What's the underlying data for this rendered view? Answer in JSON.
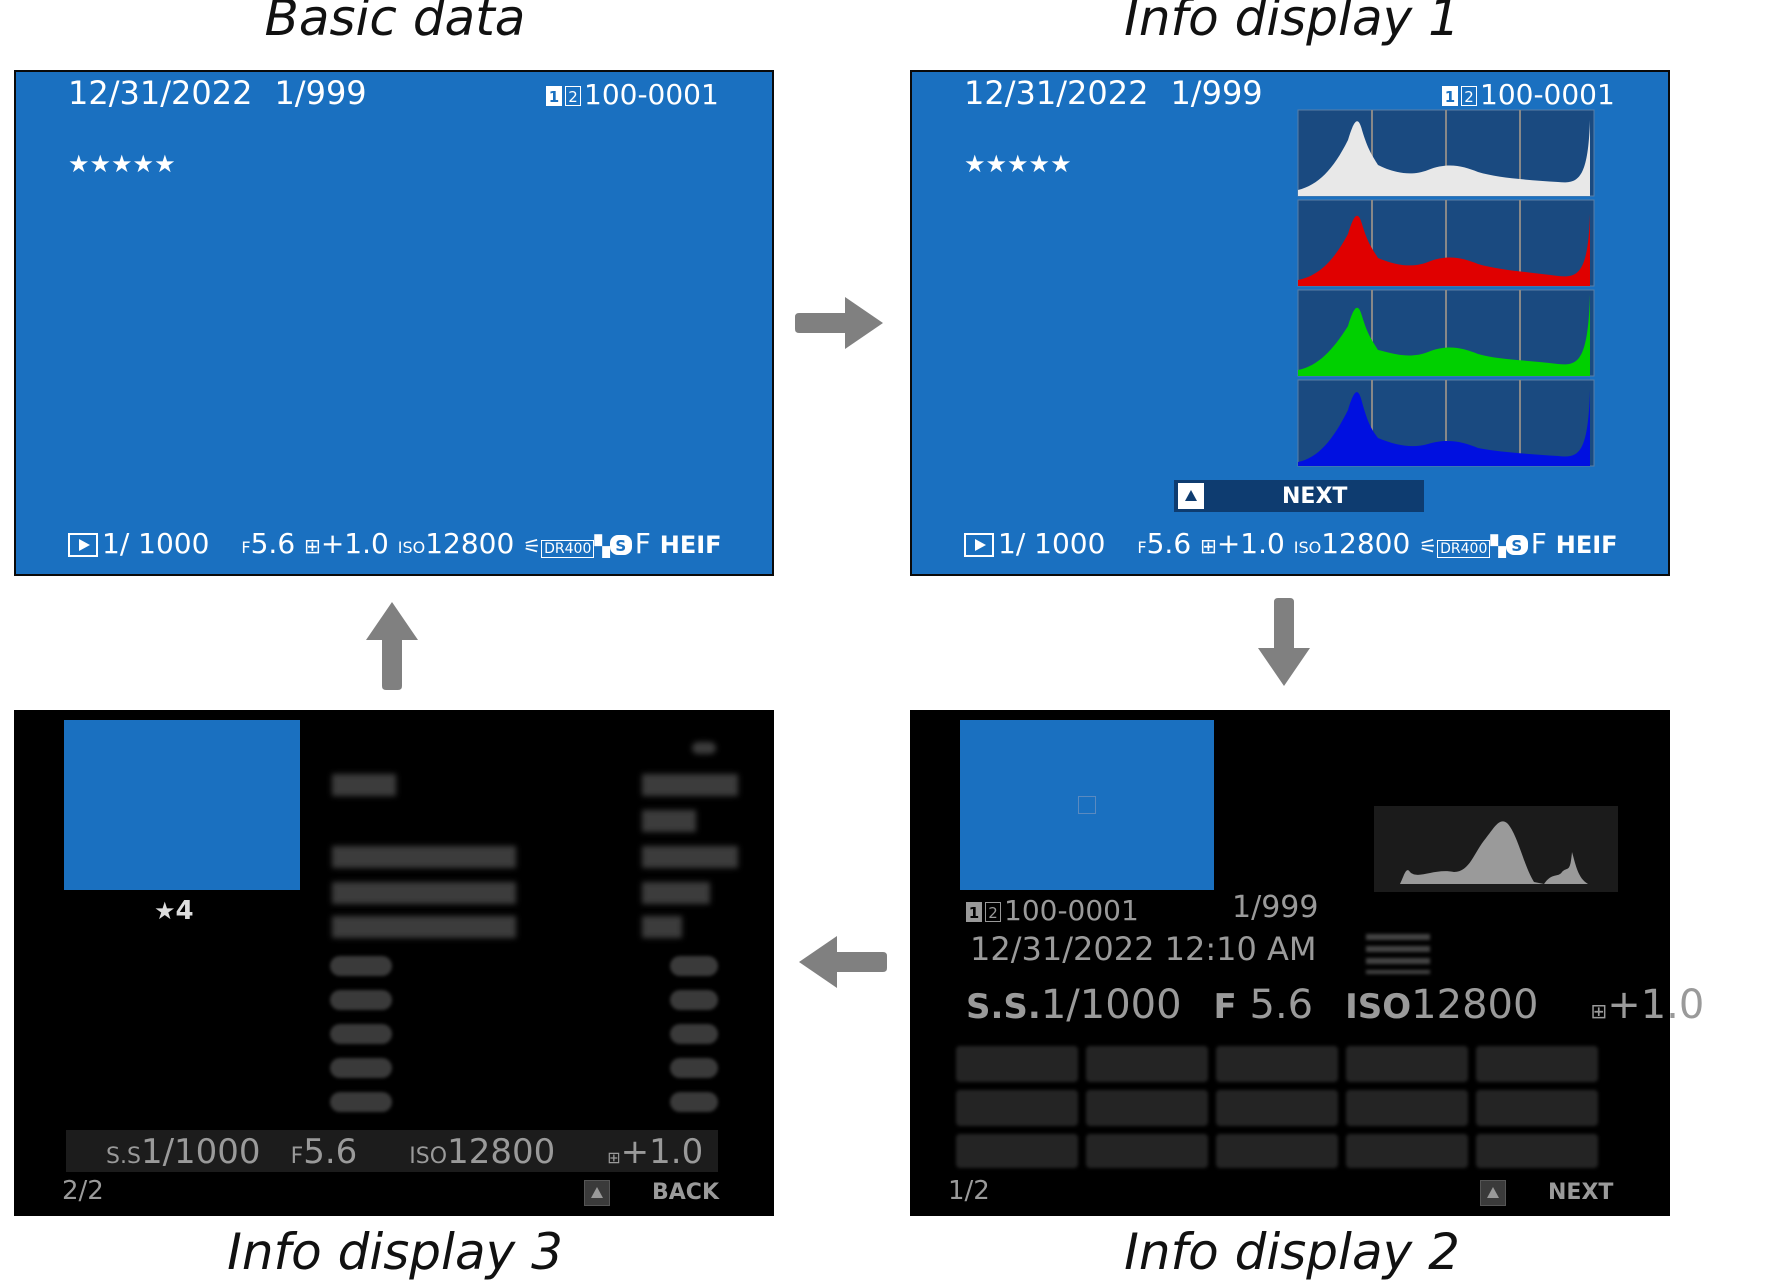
{
  "captions": {
    "basic": "Basic data",
    "info1": "Info display 1",
    "info2": "Info display 2",
    "info3": "Info display 3"
  },
  "common": {
    "date": "12/31/2022",
    "frame_counter": "1/999",
    "card_slot_1": "1",
    "card_slot_2": "2",
    "file_number": "100-0001",
    "rating_stars": "★★★★★",
    "shutter_speed": "1/ 1000",
    "aperture_prefix": "F",
    "aperture": "5.6",
    "exposure_comp": "+1.0",
    "iso_prefix": "ISO",
    "iso": "12800",
    "quality_s": "S",
    "quality_f": "F",
    "format": "HEIF",
    "dr_label": "DR",
    "dr_value": "400"
  },
  "info1": {
    "next_label": "NEXT"
  },
  "info2": {
    "file_line": "100-0001",
    "frame": "1/999",
    "datetime": "12/31/2022 12:10 AM",
    "ss_label": "S.S.",
    "ss_value": "1/1000",
    "f_label": "F",
    "f_value": "5.6",
    "iso_label": "ISO",
    "iso_value": "12800",
    "ev_value": "+1.0",
    "page": "1/2",
    "next_label": "NEXT"
  },
  "info3": {
    "rating_star": "★",
    "rating_number": "4",
    "ss_label": "S.S",
    "ss_value": "1/1000",
    "f_label": "F",
    "f_value": "5.6",
    "iso_label": "ISO",
    "iso_value": "12800",
    "ev_value": "+1.0",
    "page": "2/2",
    "back_label": "BACK"
  },
  "colors": {
    "screen_blue": "#1a70c0",
    "arrow_grey": "#808080",
    "hist_luma": "#e8e8e8",
    "hist_red": "#e00000",
    "hist_green": "#00d000",
    "hist_blue": "#0010e0"
  },
  "icons": {
    "transition_arrow": "block-arrow-icon",
    "playback": "play-icon",
    "exposure": "plus-minus-icon"
  }
}
